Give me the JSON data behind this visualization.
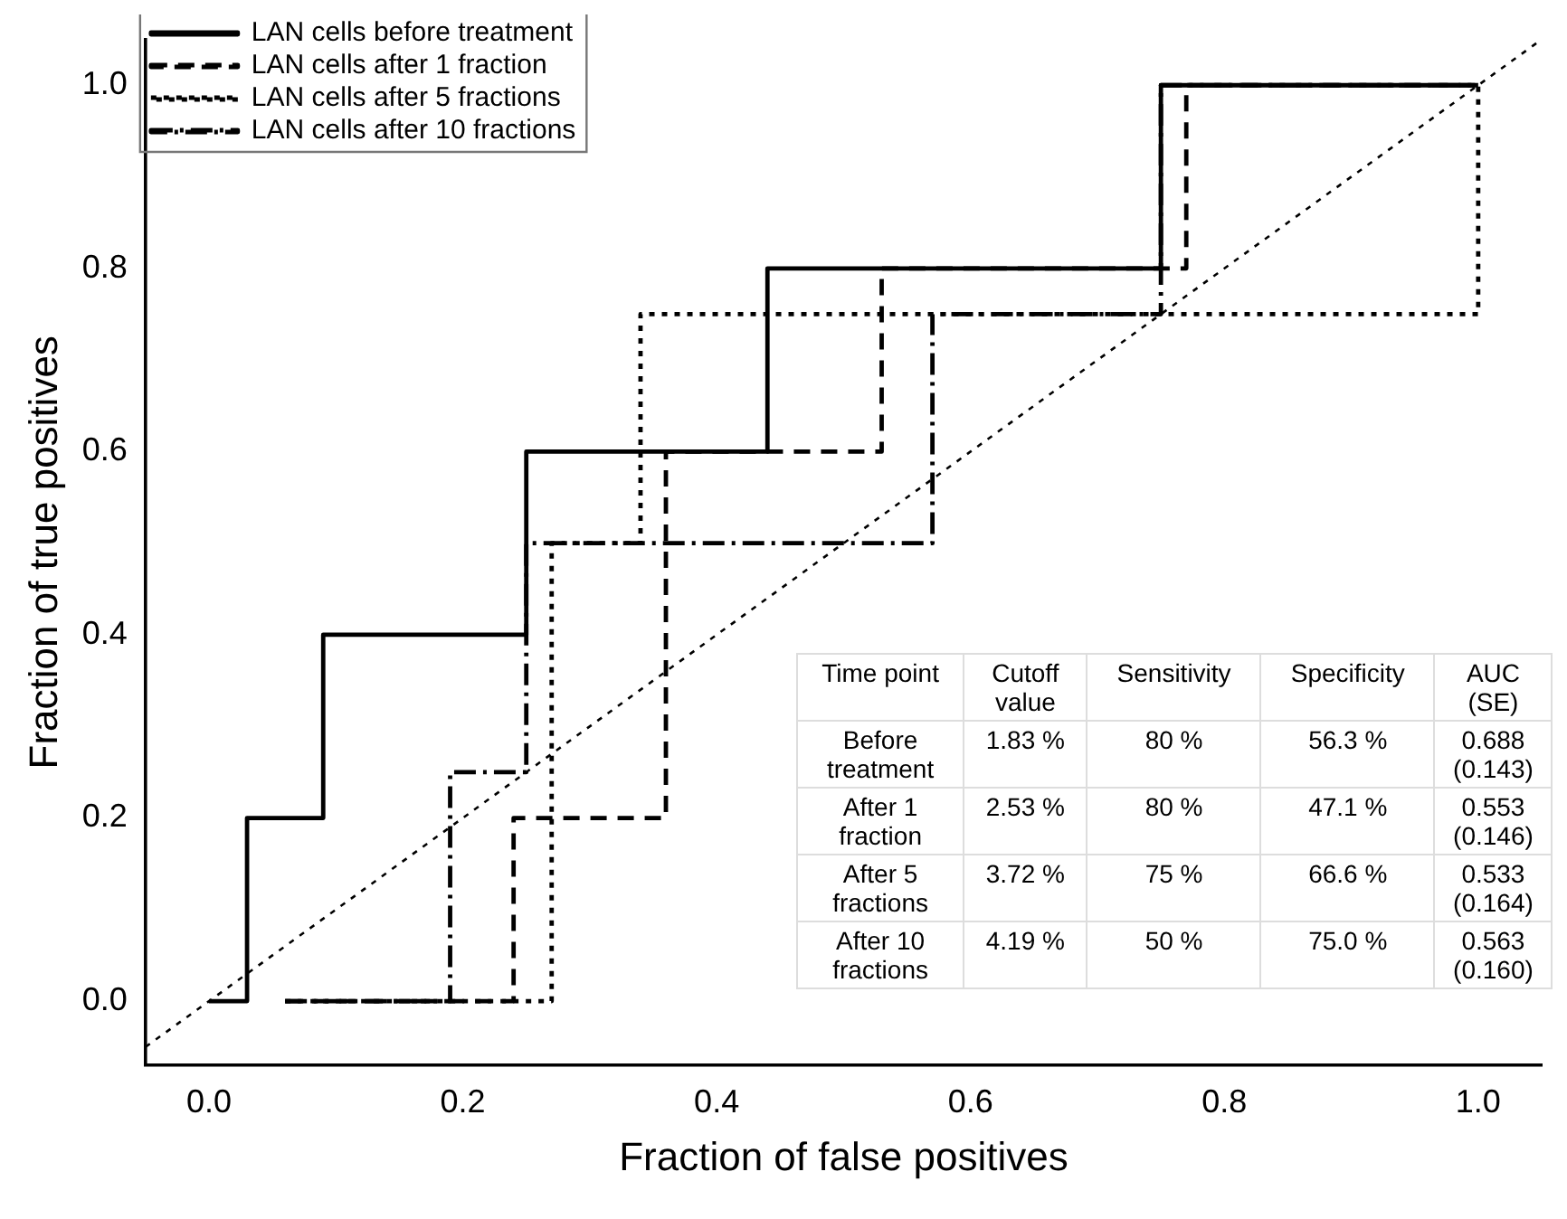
{
  "chart_data": {
    "type": "step",
    "xlabel": "Fraction of false positives",
    "ylabel": "Fraction of true positives",
    "xlim": [
      -0.05,
      1.05
    ],
    "ylim": [
      -0.07,
      1.05
    ],
    "xticks": [
      {
        "value": 0,
        "label": "0.0"
      },
      {
        "value": 0.2,
        "label": "0.2"
      },
      {
        "value": 0.4,
        "label": "0.4"
      },
      {
        "value": 0.6,
        "label": "0.6"
      },
      {
        "value": 0.8,
        "label": "0.8"
      },
      {
        "value": 1,
        "label": "1.0"
      }
    ],
    "yticks": [
      {
        "value": 0,
        "label": "0.0"
      },
      {
        "value": 0.2,
        "label": "0.2"
      },
      {
        "value": 0.4,
        "label": "0.4"
      },
      {
        "value": 0.6,
        "label": "0.6"
      },
      {
        "value": 0.8,
        "label": "0.8"
      },
      {
        "value": 1,
        "label": "1.0"
      }
    ],
    "grid": false,
    "legend": "top left",
    "marker": "none",
    "series": [
      {
        "name": "LAN cells before treatment",
        "color": "#000000",
        "line_style": "solid",
        "x": [
          0,
          0.03,
          0.09,
          0.25,
          0.44,
          0.75,
          1.0
        ],
        "values": [
          0,
          0.2,
          0.4,
          0.6,
          0.8,
          1.0,
          1.0
        ]
      },
      {
        "name": "LAN cells after 1 fraction",
        "color": "#000000",
        "line_style": "dashed",
        "x": [
          0.06,
          0.24,
          0.36,
          0.53,
          0.77,
          1.0
        ],
        "values": [
          0,
          0.2,
          0.6,
          0.8,
          1.0,
          1.0
        ]
      },
      {
        "name": "LAN cells after 5 fractions",
        "color": "#000000",
        "line_style": "dotted",
        "x": [
          0.06,
          0.27,
          0.34,
          1.0
        ],
        "values": [
          0,
          0.5,
          0.75,
          1.0
        ]
      },
      {
        "name": "LAN cells after 10 fractions",
        "color": "#000000",
        "line_style": "dashdot",
        "x": [
          0.06,
          0.19,
          0.25,
          0.57,
          0.75,
          0.75,
          1.0
        ],
        "values": [
          0,
          0.25,
          0.5,
          0.75,
          0.8,
          1.0,
          1.0
        ]
      },
      {
        "type": "line",
        "color": "#000000",
        "line_style": "dotted",
        "x": [
          -0.05,
          1.05
        ],
        "values": [
          -0.05,
          1.05
        ]
      }
    ],
    "annotations": [
      "Time point",
      "Cutoff value",
      "Sensitivity",
      "Specificity",
      "AUC (SE)",
      "Before treatment",
      "1.83 %",
      "80 %",
      "56.3 %",
      "0.688 (0.143)",
      "After 1 fraction",
      "2.53 %",
      "80 %",
      "47.1 %",
      "0.553 (0.146)",
      "After 5 fractions",
      "3.72 %",
      "75 %",
      "66.6 %",
      "0.533 (0.164)",
      "After 10 fractions",
      "4.19 %",
      "50 %",
      "75.0 %",
      "0.563 (0.160)"
    ]
  }
}
